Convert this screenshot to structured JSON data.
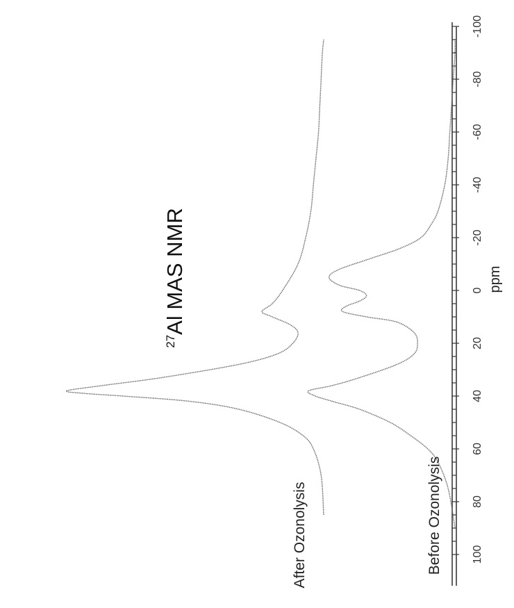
{
  "chart_data": {
    "type": "line",
    "title": {
      "superscript": "27",
      "text": "Al MAS NMR"
    },
    "xlabel": "ppm",
    "xlim": [
      100,
      -100
    ],
    "xticks": [
      100,
      80,
      60,
      40,
      20,
      0,
      -20,
      -40,
      -60,
      -80,
      -100
    ],
    "orientation": "rotated 90° counter-clockwise",
    "grid": false,
    "series": [
      {
        "name": "After Ozonolysis",
        "x": [
          85,
          70,
          60,
          55,
          50,
          45,
          42,
          40,
          39,
          38,
          36,
          33,
          28,
          24,
          20,
          16,
          13,
          10,
          8,
          5,
          0,
          -10,
          -20,
          -30,
          -40,
          -50,
          -60,
          -70,
          -80,
          -90,
          -95
        ],
        "y": [
          0.0,
          0.01,
          0.04,
          0.08,
          0.17,
          0.33,
          0.52,
          0.78,
          0.93,
          1.0,
          0.86,
          0.63,
          0.33,
          0.18,
          0.12,
          0.1,
          0.13,
          0.2,
          0.24,
          0.2,
          0.16,
          0.1,
          0.07,
          0.05,
          0.04,
          0.03,
          0.02,
          0.015,
          0.01,
          0.005,
          0.0
        ]
      },
      {
        "name": "Before Ozonolysis",
        "x": [
          90,
          75,
          65,
          60,
          55,
          50,
          45,
          42,
          40,
          38,
          36,
          33,
          28,
          24,
          20,
          16,
          12,
          10,
          8,
          6,
          4,
          2,
          0,
          -2,
          -5,
          -8,
          -12,
          -16,
          -20,
          -25,
          -30,
          -40,
          -50,
          -60,
          -70,
          -80,
          -90,
          -95
        ],
        "y": [
          0.0,
          0.02,
          0.05,
          0.08,
          0.13,
          0.19,
          0.28,
          0.36,
          0.41,
          0.43,
          0.36,
          0.28,
          0.17,
          0.12,
          0.11,
          0.12,
          0.17,
          0.26,
          0.33,
          0.32,
          0.28,
          0.26,
          0.28,
          0.34,
          0.37,
          0.34,
          0.25,
          0.16,
          0.1,
          0.07,
          0.05,
          0.03,
          0.02,
          0.015,
          0.01,
          0.005,
          0.0,
          0.0
        ]
      }
    ]
  }
}
